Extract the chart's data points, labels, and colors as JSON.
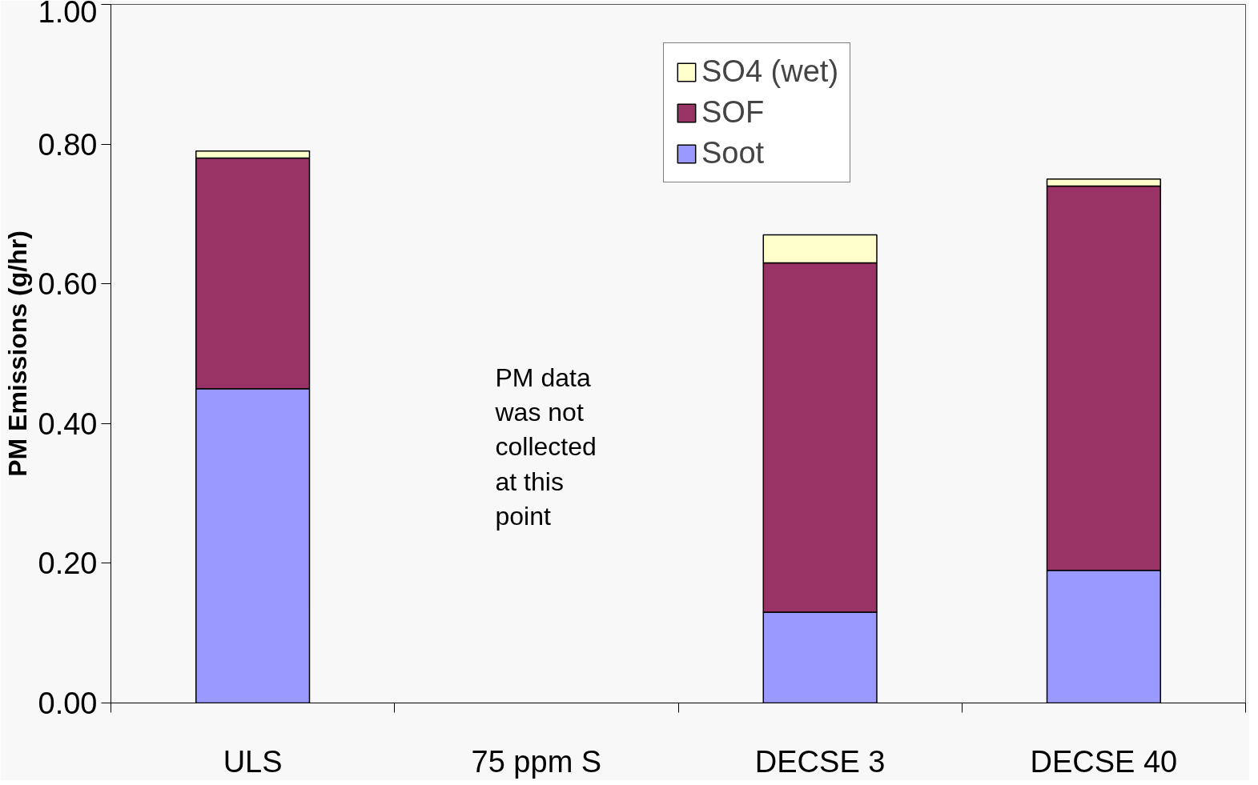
{
  "chart_data": {
    "type": "bar",
    "stacked": true,
    "ylabel": "PM Emissions (g/hr)",
    "categories": [
      "ULS",
      "75 ppm S",
      "DECSE 3",
      "DECSE 40"
    ],
    "series": [
      {
        "name": "Soot",
        "color": "#9999ff",
        "values": [
          0.45,
          null,
          0.13,
          0.19
        ]
      },
      {
        "name": "SOF",
        "color": "#993366",
        "values": [
          0.33,
          null,
          0.5,
          0.55
        ]
      },
      {
        "name": "SO4 (wet)",
        "color": "#ffffcc",
        "values": [
          0.01,
          null,
          0.04,
          0.01
        ]
      }
    ],
    "ylim": [
      0,
      1
    ],
    "yticks": [
      {
        "value": 0,
        "label": "0.00"
      },
      {
        "value": 0.2,
        "label": "0.20"
      },
      {
        "value": 0.4,
        "label": "0.40"
      },
      {
        "value": 0.6,
        "label": "0.60"
      },
      {
        "value": 0.8,
        "label": "0.80"
      },
      {
        "value": 1,
        "label": "1.00"
      }
    ],
    "grid": false,
    "legend": "top right",
    "annotations": [
      "PM data was not collected at this point"
    ]
  }
}
